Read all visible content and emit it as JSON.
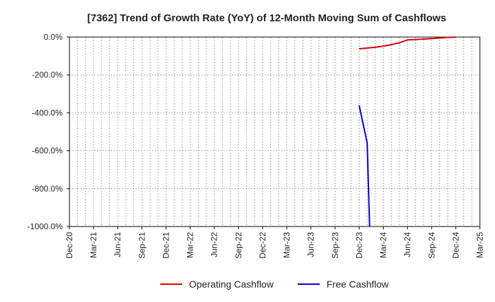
{
  "chart_data": {
    "type": "line",
    "title": "[7362]  Trend of Growth Rate (YoY) of 12-Month Moving Sum of Cashflows",
    "xlabel": "",
    "ylabel": "",
    "x_range": [
      "2020-12",
      "2025-03"
    ],
    "ylim": [
      -1000,
      0
    ],
    "y_ticks": [
      0,
      -200,
      -400,
      -600,
      -800,
      -1000
    ],
    "y_tick_labels": [
      "0.0%",
      "-200.0%",
      "-400.0%",
      "-600.0%",
      "-800.0%",
      "-1000.0%"
    ],
    "x_ticks": [
      "2020-12",
      "2021-03",
      "2021-06",
      "2021-09",
      "2021-12",
      "2022-03",
      "2022-06",
      "2022-09",
      "2022-12",
      "2023-03",
      "2023-06",
      "2023-09",
      "2023-12",
      "2024-03",
      "2024-06",
      "2024-09",
      "2024-12",
      "2025-03"
    ],
    "x_tick_labels": [
      "Dec-20",
      "Mar-21",
      "Jun-21",
      "Sep-21",
      "Dec-21",
      "Mar-22",
      "Jun-22",
      "Sep-22",
      "Dec-22",
      "Mar-23",
      "Jun-23",
      "Sep-23",
      "Dec-23",
      "Mar-24",
      "Jun-24",
      "Sep-24",
      "Dec-24",
      "Mar-25"
    ],
    "grid": true,
    "legend_position": "bottom",
    "series": [
      {
        "name": "Operating Cashflow",
        "color": "#dd0000",
        "points": [
          {
            "x": "2023-12",
            "y": -62
          },
          {
            "x": "2024-01",
            "y": -58
          },
          {
            "x": "2024-02",
            "y": -54
          },
          {
            "x": "2024-03",
            "y": -48
          },
          {
            "x": "2024-04",
            "y": -40
          },
          {
            "x": "2024-05",
            "y": -30
          },
          {
            "x": "2024-06",
            "y": -15
          },
          {
            "x": "2024-07",
            "y": -13
          },
          {
            "x": "2024-08",
            "y": -11
          },
          {
            "x": "2024-09",
            "y": -8
          },
          {
            "x": "2024-10",
            "y": -5
          },
          {
            "x": "2024-11",
            "y": -2
          },
          {
            "x": "2024-12",
            "y": 0
          }
        ]
      },
      {
        "name": "Free Cashflow",
        "color": "#0000cc",
        "points": [
          {
            "x": "2023-12",
            "y": -360
          },
          {
            "x": "2024-01",
            "y": -560
          },
          {
            "x": "2024-01-10",
            "y": -1000
          }
        ]
      }
    ]
  }
}
